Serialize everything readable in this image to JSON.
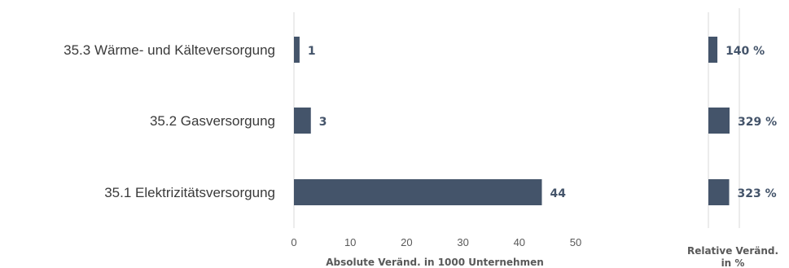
{
  "chart_data": [
    {
      "type": "bar",
      "orientation": "horizontal",
      "categories": [
        "35.3 Wärme- und Kälteversorgung",
        "35.2 Gasversorgung",
        "35.1 Elektrizitätsversorgung"
      ],
      "values": [
        1,
        3,
        44
      ],
      "value_labels": [
        "1",
        "3",
        "44"
      ],
      "xlabel": "Absolute Veränd. in 1000 Unternehmen",
      "xlim": [
        0,
        50
      ],
      "ticks": [
        0,
        10,
        20,
        30,
        40,
        50
      ],
      "bar_color": "#44546a"
    },
    {
      "type": "bar",
      "orientation": "horizontal",
      "categories": [
        "35.3 Wärme- und Kälteversorgung",
        "35.2 Gasversorgung",
        "35.1 Elektrizitätsversorgung"
      ],
      "values": [
        140,
        329,
        323
      ],
      "value_labels": [
        "140 %",
        "329 %",
        "323 %"
      ],
      "xlabel_lines": [
        "Relative Veränd.",
        "in %"
      ],
      "bar_color": "#44546a"
    }
  ]
}
